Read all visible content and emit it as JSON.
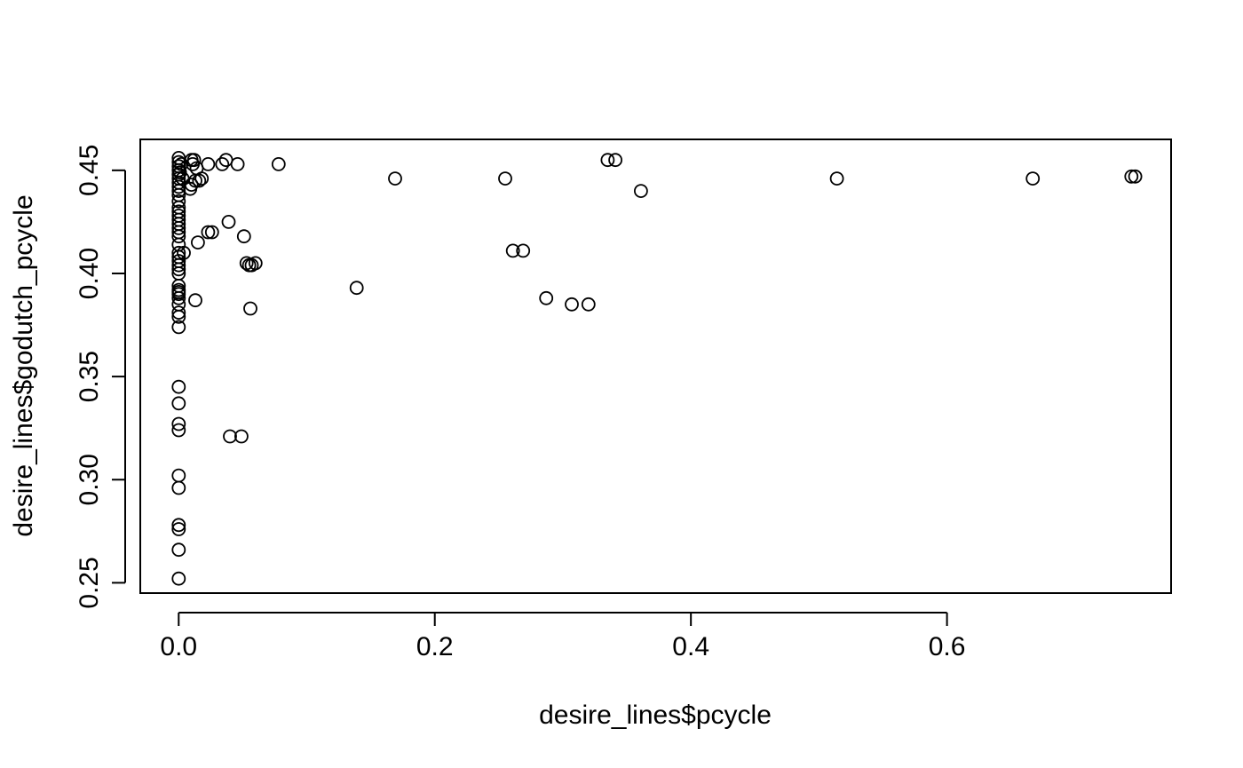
{
  "chart_data": {
    "type": "scatter",
    "title": "",
    "xlabel": "desire_lines$pcycle",
    "ylabel": "desire_lines$godutch_pcycle",
    "xlim": [
      -0.03,
      0.775
    ],
    "ylim": [
      0.245,
      0.465
    ],
    "xticks": [
      0.0,
      0.2,
      0.4,
      0.6
    ],
    "xtick_labels": [
      "0.0",
      "0.2",
      "0.4",
      "0.6"
    ],
    "yticks": [
      0.25,
      0.3,
      0.35,
      0.4,
      0.45
    ],
    "ytick_labels": [
      "0.25",
      "0.30",
      "0.35",
      "0.40",
      "0.45"
    ],
    "grid": false,
    "legend": "none",
    "marker": "open-circle",
    "points": [
      [
        0.0,
        0.252
      ],
      [
        0.0,
        0.266
      ],
      [
        0.0,
        0.276
      ],
      [
        0.0,
        0.278
      ],
      [
        0.0,
        0.296
      ],
      [
        0.0,
        0.302
      ],
      [
        0.0,
        0.324
      ],
      [
        0.0,
        0.327
      ],
      [
        0.0,
        0.337
      ],
      [
        0.0,
        0.345
      ],
      [
        0.0,
        0.374
      ],
      [
        0.0,
        0.379
      ],
      [
        0.0,
        0.381
      ],
      [
        0.0,
        0.385
      ],
      [
        0.0,
        0.388
      ],
      [
        0.0,
        0.39
      ],
      [
        0.0,
        0.391
      ],
      [
        0.0,
        0.392
      ],
      [
        0.0,
        0.394
      ],
      [
        0.0,
        0.4
      ],
      [
        0.0,
        0.402
      ],
      [
        0.0,
        0.404
      ],
      [
        0.0,
        0.406
      ],
      [
        0.0,
        0.408
      ],
      [
        0.0,
        0.41
      ],
      [
        0.0,
        0.414
      ],
      [
        0.0,
        0.418
      ],
      [
        0.0,
        0.42
      ],
      [
        0.0,
        0.422
      ],
      [
        0.0,
        0.424
      ],
      [
        0.0,
        0.426
      ],
      [
        0.0,
        0.428
      ],
      [
        0.0,
        0.43
      ],
      [
        0.0,
        0.432
      ],
      [
        0.0,
        0.435
      ],
      [
        0.0,
        0.438
      ],
      [
        0.0,
        0.44
      ],
      [
        0.0,
        0.442
      ],
      [
        0.0,
        0.444
      ],
      [
        0.0,
        0.446
      ],
      [
        0.0,
        0.448
      ],
      [
        0.0,
        0.45
      ],
      [
        0.0,
        0.452
      ],
      [
        0.0,
        0.454
      ],
      [
        0.0,
        0.456
      ],
      [
        0.001,
        0.449
      ],
      [
        0.002,
        0.453
      ],
      [
        0.003,
        0.446
      ],
      [
        0.004,
        0.41
      ],
      [
        0.009,
        0.441
      ],
      [
        0.01,
        0.443
      ],
      [
        0.01,
        0.455
      ],
      [
        0.011,
        0.453
      ],
      [
        0.012,
        0.455
      ],
      [
        0.013,
        0.445
      ],
      [
        0.013,
        0.387
      ],
      [
        0.014,
        0.451
      ],
      [
        0.015,
        0.415
      ],
      [
        0.016,
        0.445
      ],
      [
        0.018,
        0.446
      ],
      [
        0.023,
        0.42
      ],
      [
        0.023,
        0.453
      ],
      [
        0.026,
        0.42
      ],
      [
        0.034,
        0.453
      ],
      [
        0.037,
        0.455
      ],
      [
        0.039,
        0.425
      ],
      [
        0.04,
        0.321
      ],
      [
        0.046,
        0.453
      ],
      [
        0.049,
        0.321
      ],
      [
        0.051,
        0.418
      ],
      [
        0.053,
        0.405
      ],
      [
        0.055,
        0.404
      ],
      [
        0.056,
        0.383
      ],
      [
        0.057,
        0.404
      ],
      [
        0.06,
        0.405
      ],
      [
        0.078,
        0.453
      ],
      [
        0.139,
        0.393
      ],
      [
        0.169,
        0.446
      ],
      [
        0.255,
        0.446
      ],
      [
        0.261,
        0.411
      ],
      [
        0.269,
        0.411
      ],
      [
        0.287,
        0.388
      ],
      [
        0.307,
        0.385
      ],
      [
        0.32,
        0.385
      ],
      [
        0.335,
        0.455
      ],
      [
        0.341,
        0.455
      ],
      [
        0.361,
        0.44
      ],
      [
        0.514,
        0.446
      ],
      [
        0.667,
        0.446
      ],
      [
        0.744,
        0.447
      ],
      [
        0.747,
        0.447
      ]
    ]
  }
}
